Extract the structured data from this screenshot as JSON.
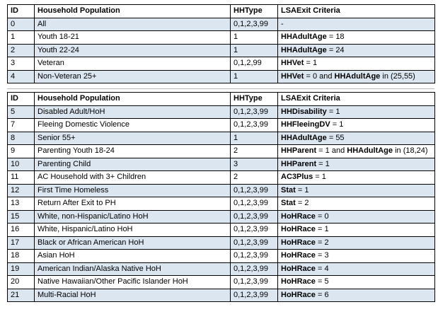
{
  "tables": [
    {
      "header": [
        "ID",
        "Household Population",
        "HHType",
        "LSAExit Criteria"
      ],
      "rows": [
        {
          "id": "0",
          "population": "All",
          "hhtype": "0,1,2,3,99",
          "criteria": [
            {
              "text": "-"
            }
          ]
        },
        {
          "id": "1",
          "population": "Youth  18-21",
          "hhtype": "1",
          "criteria": [
            {
              "text": "HHAdultAge",
              "bold": true
            },
            {
              "text": " = 18"
            }
          ]
        },
        {
          "id": "2",
          "population": "Youth 22-24",
          "hhtype": "1",
          "criteria": [
            {
              "text": "HHAdultAge",
              "bold": true
            },
            {
              "text": " = 24"
            }
          ]
        },
        {
          "id": "3",
          "population": "Veteran",
          "hhtype": "0,1,2,99",
          "criteria": [
            {
              "text": "HHVet",
              "bold": true
            },
            {
              "text": " = 1"
            }
          ]
        },
        {
          "id": "4",
          "population": "Non-Veteran 25+",
          "hhtype": "1",
          "criteria": [
            {
              "text": "HHVet",
              "bold": true
            },
            {
              "text": " = 0 and "
            },
            {
              "text": "HHAdultAge",
              "bold": true
            },
            {
              "text": " in (25,55)"
            }
          ]
        }
      ]
    },
    {
      "header": [
        "ID",
        "Household Population",
        "HHType",
        "LSAExit Criteria"
      ],
      "rows": [
        {
          "id": "5",
          "population": "Disabled Adult/HoH",
          "hhtype": "0,1,2,3,99",
          "criteria": [
            {
              "text": "HHDisability",
              "bold": true
            },
            {
              "text": " = 1"
            }
          ]
        },
        {
          "id": "7",
          "population": "Fleeing Domestic Violence",
          "hhtype": "0,1,2,3,99",
          "criteria": [
            {
              "text": "HHFleeingDV",
              "bold": true
            },
            {
              "text": " = 1"
            }
          ]
        },
        {
          "id": "8",
          "population": "Senior 55+",
          "hhtype": "1",
          "criteria": [
            {
              "text": "HHAdultAge",
              "bold": true
            },
            {
              "text": " = 55"
            }
          ]
        },
        {
          "id": "9",
          "population": "Parenting Youth 18-24",
          "hhtype": "2",
          "criteria": [
            {
              "text": "HHParent",
              "bold": true
            },
            {
              "text": " = 1 and "
            },
            {
              "text": "HHAdultAge",
              "bold": true
            },
            {
              "text": " in (18,24)"
            }
          ]
        },
        {
          "id": "10",
          "population": "Parenting Child",
          "hhtype": "3",
          "criteria": [
            {
              "text": "HHParent",
              "bold": true
            },
            {
              "text": " = 1"
            }
          ]
        },
        {
          "id": "11",
          "population": "AC Household with 3+ Children",
          "hhtype": "2",
          "criteria": [
            {
              "text": "AC3Plus",
              "bold": true
            },
            {
              "text": " = 1"
            }
          ]
        },
        {
          "id": "12",
          "population": "First Time Homeless",
          "hhtype": "0,1,2,3,99",
          "criteria": [
            {
              "text": "Stat",
              "bold": true
            },
            {
              "text": " = 1"
            }
          ]
        },
        {
          "id": "13",
          "population": "Return After Exit to PH",
          "hhtype": "0,1,2,3,99",
          "criteria": [
            {
              "text": "Stat",
              "bold": true
            },
            {
              "text": " = 2"
            }
          ]
        },
        {
          "id": "15",
          "population": "White, non-Hispanic/Latino HoH",
          "hhtype": "0,1,2,3,99",
          "criteria": [
            {
              "text": "HoHRace",
              "bold": true
            },
            {
              "text": " = 0"
            }
          ]
        },
        {
          "id": "16",
          "population": "White, Hispanic/Latino HoH",
          "hhtype": "0,1,2,3,99",
          "criteria": [
            {
              "text": "HoHRace",
              "bold": true
            },
            {
              "text": " = 1"
            }
          ]
        },
        {
          "id": "17",
          "population": "Black or African American HoH",
          "hhtype": "0,1,2,3,99",
          "criteria": [
            {
              "text": "HoHRace",
              "bold": true
            },
            {
              "text": " = 2"
            }
          ]
        },
        {
          "id": "18",
          "population": "Asian HoH",
          "hhtype": "0,1,2,3,99",
          "criteria": [
            {
              "text": "HoHRace",
              "bold": true
            },
            {
              "text": " = 3"
            }
          ]
        },
        {
          "id": "19",
          "population": "American Indian/Alaska Native HoH",
          "hhtype": "0,1,2,3,99",
          "criteria": [
            {
              "text": "HoHRace",
              "bold": true
            },
            {
              "text": " = 4"
            }
          ]
        },
        {
          "id": "20",
          "population": "Native Hawaiian/Other Pacific Islander HoH",
          "hhtype": "0,1,2,3,99",
          "criteria": [
            {
              "text": "HoHRace",
              "bold": true
            },
            {
              "text": " = 5"
            }
          ]
        },
        {
          "id": "21",
          "population": "Multi-Racial HoH",
          "hhtype": "0,1,2,3,99",
          "criteria": [
            {
              "text": "HoHRace",
              "bold": true
            },
            {
              "text": " = 6"
            }
          ]
        }
      ]
    }
  ]
}
